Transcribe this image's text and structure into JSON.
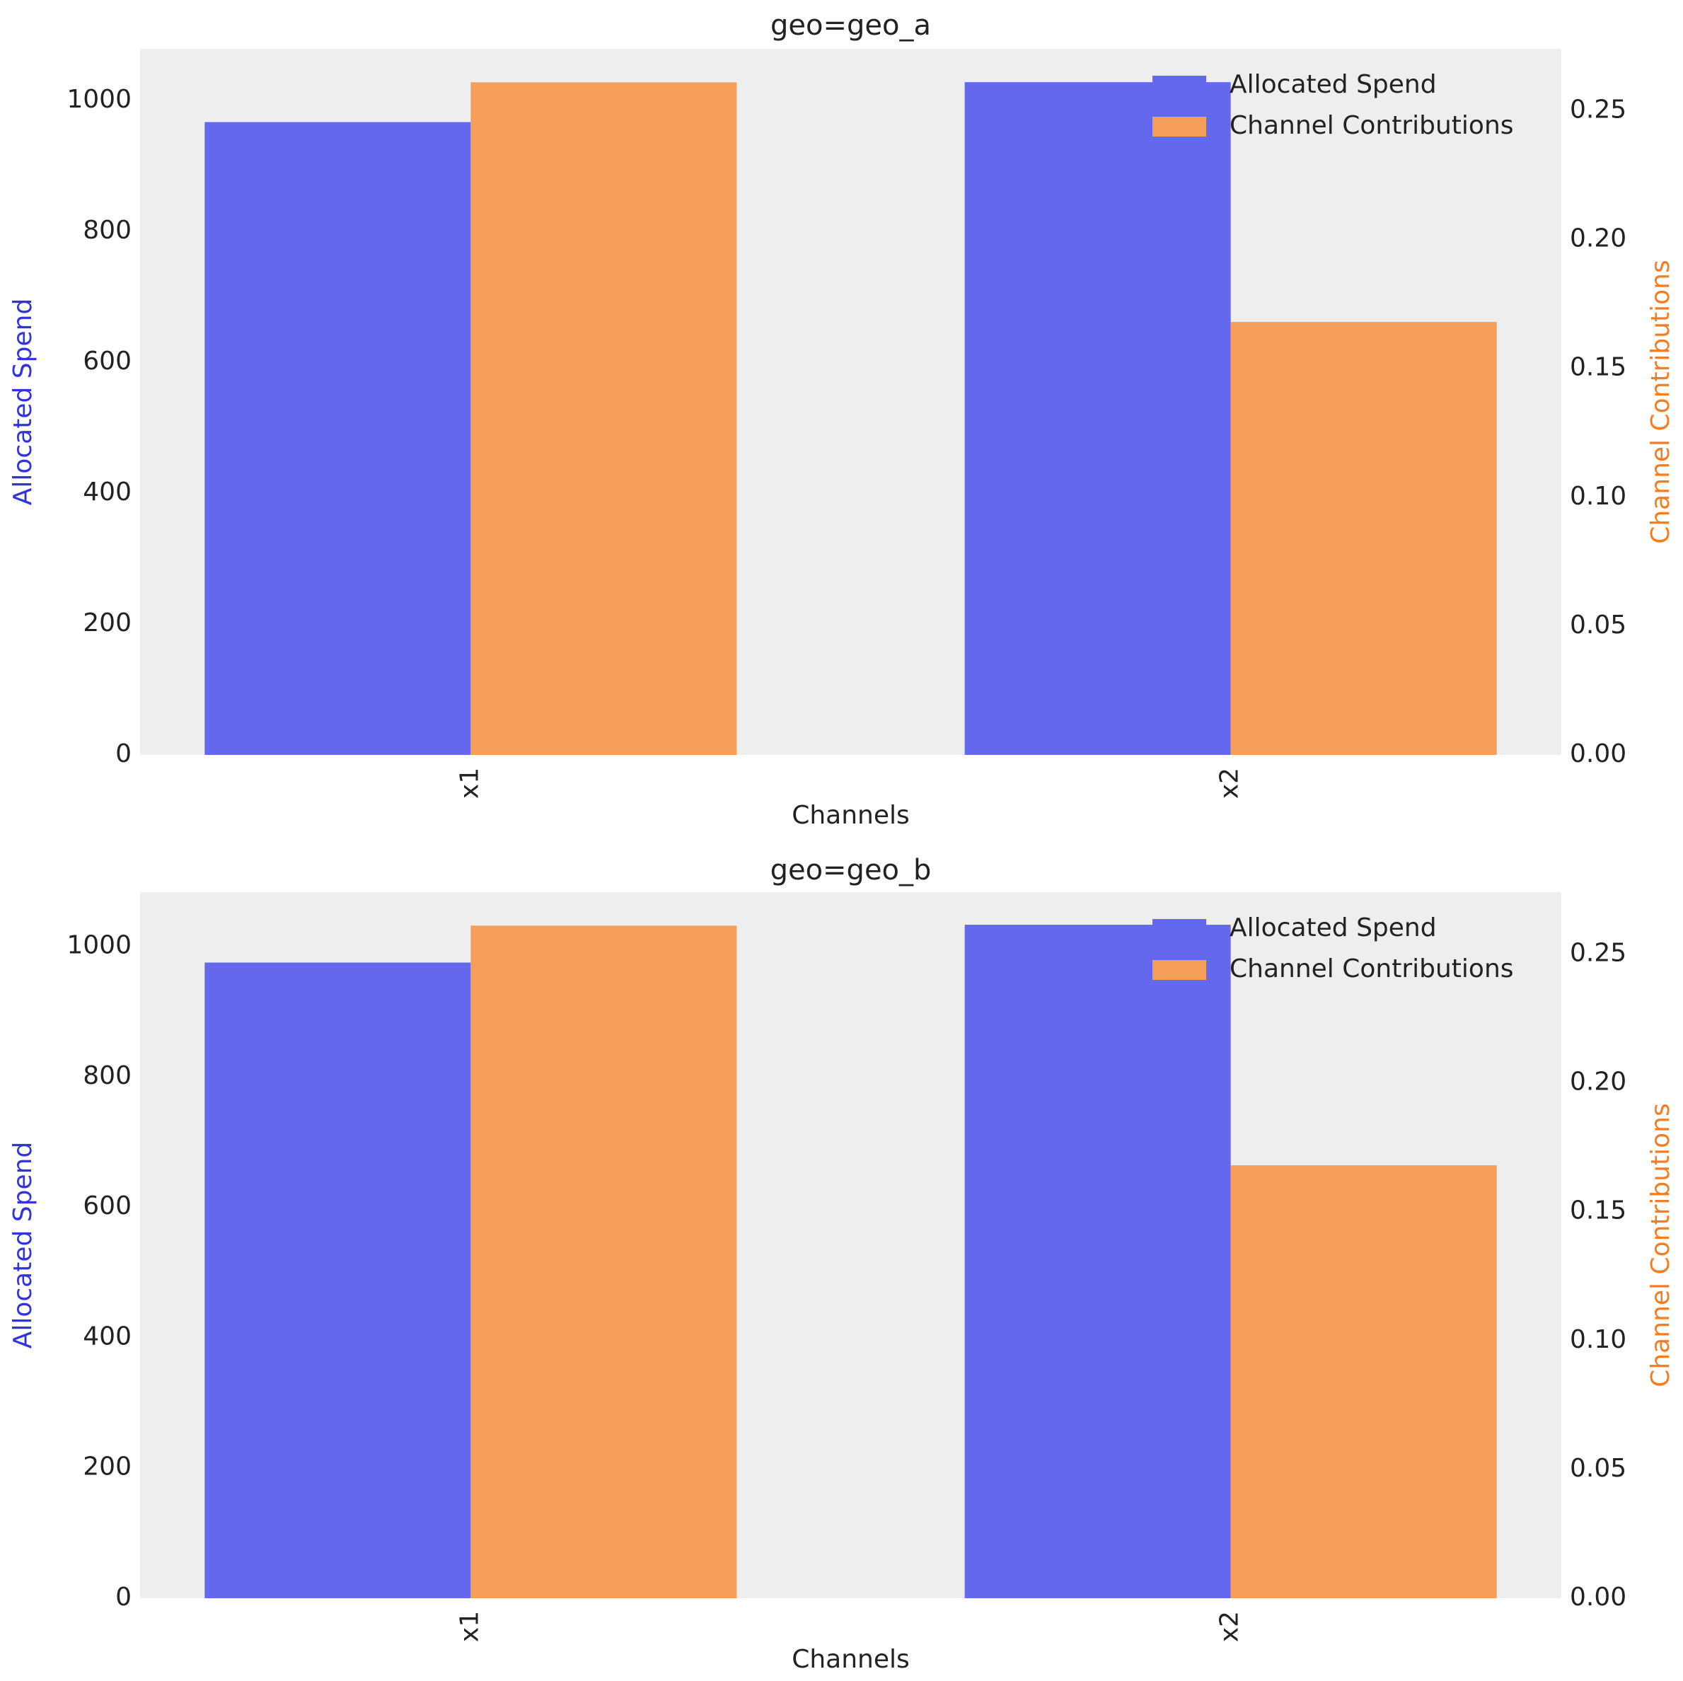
{
  "chart_data": [
    {
      "type": "bar",
      "title": "geo=geo_a",
      "xlabel": "Channels",
      "ylabel": "Allocated Spend",
      "y2label": "Channel Contributions",
      "ylabel_color": "#3333dd",
      "y2label_color": "#f57c20",
      "categories": [
        "x1",
        "x2"
      ],
      "series": [
        {
          "name": "Allocated Spend",
          "color": "#6468ec",
          "values": [
            967,
            1028
          ]
        },
        {
          "name": "Channel Contributions",
          "color": "#f49e5a",
          "values": [
            0.261,
            0.168
          ],
          "axis": "y2"
        }
      ],
      "ylim": [
        0,
        1079
      ],
      "yticks": [
        0,
        200,
        400,
        600,
        800,
        1000
      ],
      "y2lim": [
        0,
        0.274
      ],
      "y2ticks": [
        {
          "value": 0,
          "label": "0.00"
        },
        0.05,
        {
          "value": 0.1,
          "label": "0.10"
        },
        0.15,
        {
          "value": 0.2,
          "label": "0.20"
        },
        0.25
      ],
      "legend": "upper right"
    },
    {
      "type": "bar",
      "title": "geo=geo_b",
      "xlabel": "Channels",
      "ylabel": "Allocated Spend",
      "y2label": "Channel Contributions",
      "ylabel_color": "#3333dd",
      "y2label_color": "#f57c20",
      "categories": [
        "x1",
        "x2"
      ],
      "series": [
        {
          "name": "Allocated Spend",
          "color": "#6468ec",
          "values": [
            975,
            1033
          ]
        },
        {
          "name": "Channel Contributions",
          "color": "#f49e5a",
          "values": [
            0.261,
            0.168
          ],
          "axis": "y2"
        }
      ],
      "ylim": [
        0,
        1083
      ],
      "yticks": [
        0,
        200,
        400,
        600,
        800,
        1000
      ],
      "y2lim": [
        0,
        0.274
      ],
      "y2ticks": [
        {
          "value": 0,
          "label": "0.00"
        },
        0.05,
        {
          "value": 0.1,
          "label": "0.10"
        },
        0.15,
        {
          "value": 0.2,
          "label": "0.20"
        },
        0.25
      ],
      "legend": "upper right"
    }
  ]
}
